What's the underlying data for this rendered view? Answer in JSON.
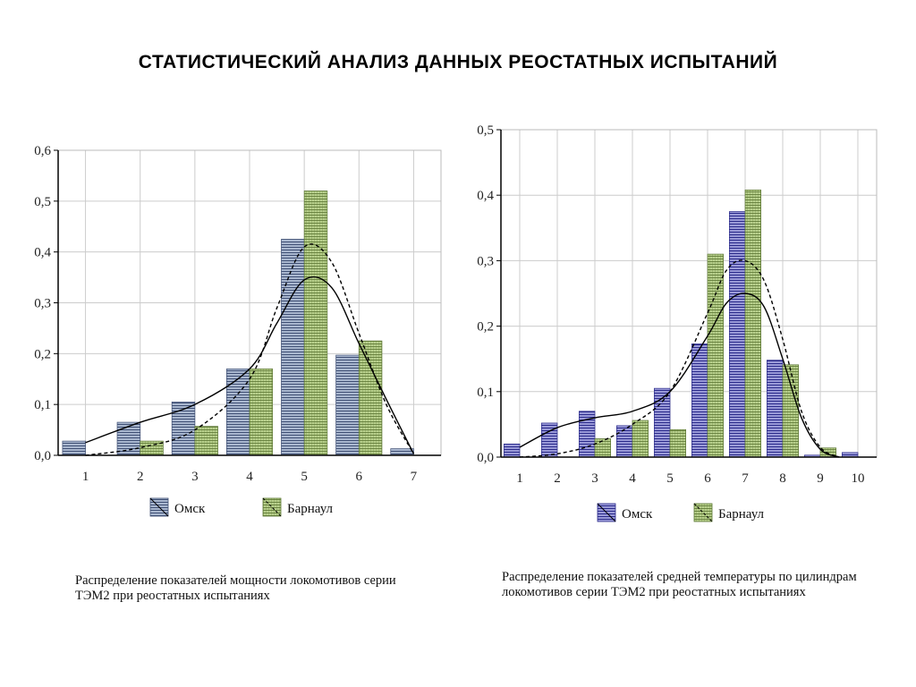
{
  "title": "СТАТИСТИЧЕСКИЙ  АНАЛИЗ ДАННЫХ  РЕОСТАТНЫХ  ИСПЫТАНИЙ",
  "colors": {
    "omsk_fill": "#a9b7cf",
    "omsk_stripe": "#3f4f74",
    "omsk_right_fill": "#9a9ad8",
    "omsk_right_stripe": "#2a2a8a",
    "barnaul_fill": "#b8d08c",
    "barnaul_stripe": "#5b7533",
    "grid": "#cccccc",
    "curve": "#000000"
  },
  "charts": [
    {
      "id": "left",
      "caption": "Распределение показателей мощности локомотивов серии ТЭМ2 при реостатных испытаниях",
      "legend": [
        "Омск",
        "Барнаул"
      ],
      "chart_data": {
        "type": "bar",
        "categories": [
          "1",
          "2",
          "3",
          "4",
          "5",
          "6",
          "7"
        ],
        "ylim": [
          0,
          0.6
        ],
        "yticks": [
          "0,0",
          "0,1",
          "0,2",
          "0,3",
          "0,4",
          "0,5",
          "0,6"
        ],
        "series": [
          {
            "name": "Омск",
            "values": [
              0.028,
              0.065,
              0.105,
              0.17,
              0.425,
              0.197,
              0.013
            ]
          },
          {
            "name": "Барнаул",
            "values": [
              0.0,
              0.028,
              0.057,
              0.17,
              0.52,
              0.225,
              0.0
            ]
          }
        ],
        "curves": [
          {
            "style": "solid",
            "x": [
              1,
              2,
              3,
              4,
              4.5,
              5,
              5.5,
              6,
              6.5,
              7
            ],
            "y": [
              0.025,
              0.065,
              0.1,
              0.17,
              0.26,
              0.345,
              0.33,
              0.22,
              0.11,
              0.003
            ]
          },
          {
            "style": "dashed",
            "x": [
              1,
              2,
              3,
              4,
              4.5,
              5,
              5.5,
              6,
              6.5,
              7
            ],
            "y": [
              0.0,
              0.015,
              0.05,
              0.15,
              0.29,
              0.41,
              0.38,
              0.24,
              0.1,
              0.003
            ]
          }
        ]
      }
    },
    {
      "id": "right",
      "caption": "Распределение показателей средней температуры по цилиндрам локомотивов серии ТЭМ2 при реостатных испытаниях",
      "legend": [
        "Омск",
        "Барнаул"
      ],
      "chart_data": {
        "type": "bar",
        "categories": [
          "1",
          "2",
          "3",
          "4",
          "5",
          "6",
          "7",
          "8",
          "9",
          "10"
        ],
        "ylim": [
          0,
          0.5
        ],
        "yticks": [
          "0,0",
          "0,1",
          "0,2",
          "0,3",
          "0,4",
          "0,5"
        ],
        "series": [
          {
            "name": "Омск",
            "values": [
              0.02,
              0.052,
              0.07,
              0.048,
              0.105,
              0.173,
              0.375,
              0.148,
              0.003,
              0.007
            ]
          },
          {
            "name": "Барнаул",
            "values": [
              0.0,
              0.0,
              0.028,
              0.056,
              0.042,
              0.31,
              0.408,
              0.141,
              0.014,
              0.0
            ]
          }
        ],
        "curves": [
          {
            "style": "solid",
            "x": [
              1,
              2,
              3,
              4,
              5,
              6,
              6.5,
              7,
              7.5,
              8,
              8.5,
              9,
              9.5
            ],
            "y": [
              0.015,
              0.045,
              0.06,
              0.07,
              0.1,
              0.185,
              0.235,
              0.25,
              0.23,
              0.15,
              0.06,
              0.012,
              0.0
            ]
          },
          {
            "style": "dashed",
            "x": [
              1,
              2,
              3,
              4,
              5,
              6,
              6.5,
              7,
              7.5,
              8,
              8.5,
              9,
              9.5
            ],
            "y": [
              0.0,
              0.005,
              0.02,
              0.05,
              0.1,
              0.22,
              0.285,
              0.3,
              0.27,
              0.18,
              0.07,
              0.015,
              0.0
            ]
          }
        ]
      }
    }
  ]
}
